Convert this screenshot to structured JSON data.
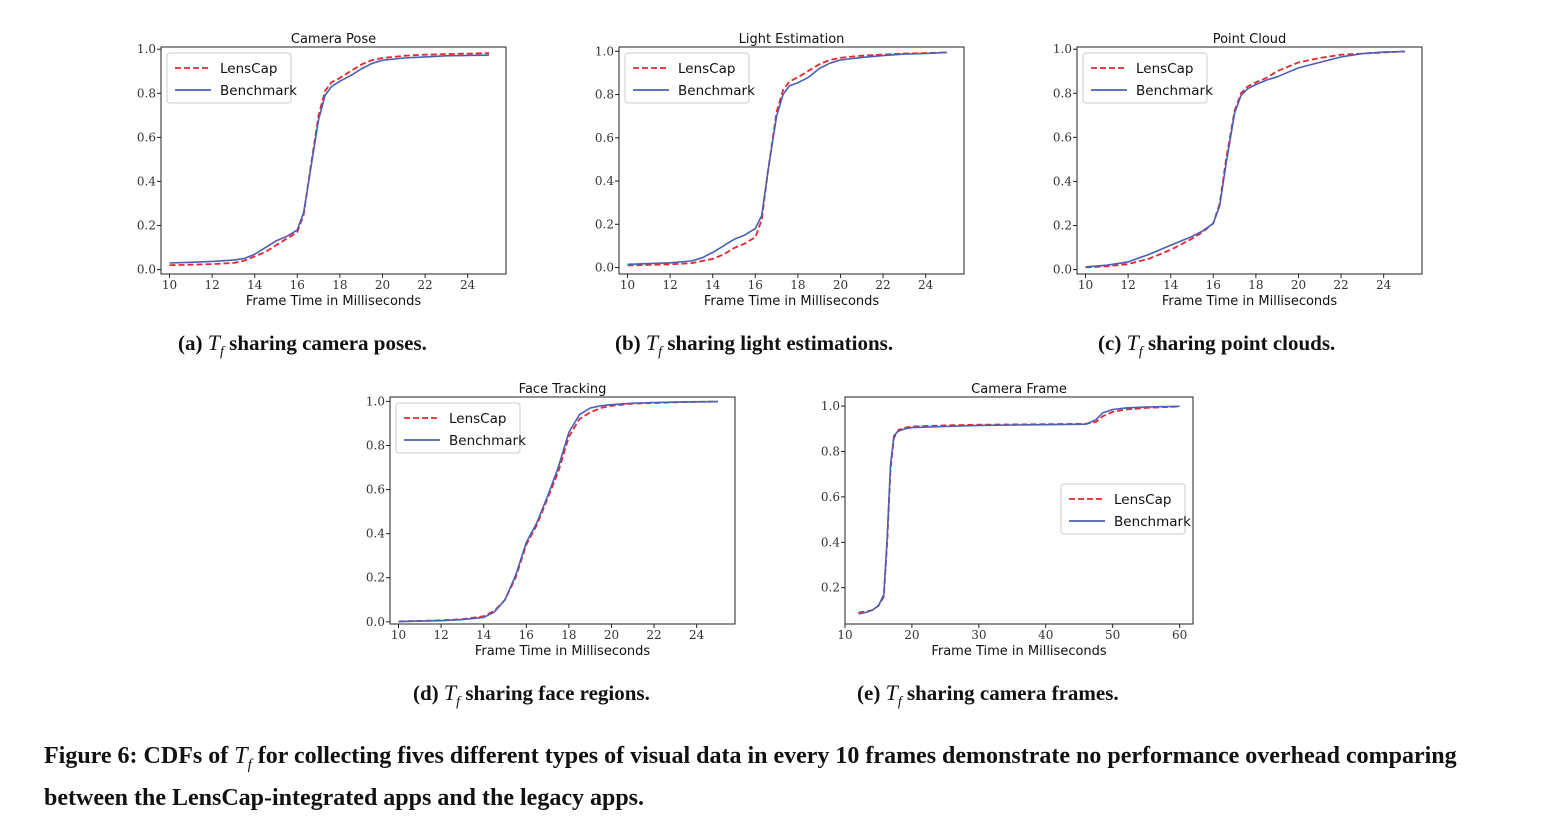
{
  "figure": {
    "caption_label": "Figure 6:",
    "caption_pre": "CDFs of",
    "caption_var": "T",
    "caption_sub": "f",
    "caption_post": "for collecting fives different types of visual data in every 10 frames demonstrate no performance overhead comparing between the LensCap-integrated apps and the legacy apps."
  },
  "subcaptions": [
    {
      "label": "(a)",
      "var": "T",
      "sub": "f",
      "text": "sharing camera poses."
    },
    {
      "label": "(b)",
      "var": "T",
      "sub": "f",
      "text": "sharing light estimations."
    },
    {
      "label": "(c)",
      "var": "T",
      "sub": "f",
      "text": "sharing point clouds."
    },
    {
      "label": "(d)",
      "var": "T",
      "sub": "f",
      "text": "sharing face regions."
    },
    {
      "label": "(e)",
      "var": "T",
      "sub": "f",
      "text": "sharing camera frames."
    }
  ],
  "colors": {
    "lenscap": "#e8262e",
    "benchmark": "#4a5fb5"
  },
  "chart_data": [
    {
      "type": "line",
      "title": "Camera Pose",
      "xlabel": "Frame Time in Milliseconds",
      "ylabel": "",
      "xlim": [
        9.6,
        25.8
      ],
      "ylim": [
        -0.02,
        1.01
      ],
      "xticks": [
        10,
        12,
        14,
        16,
        18,
        20,
        22,
        24
      ],
      "yticks": [
        0.0,
        0.2,
        0.4,
        0.6,
        0.8,
        1.0
      ],
      "legend": "top-left",
      "series": [
        {
          "name": "LensCap",
          "style": "dashed",
          "x": [
            10,
            11,
            12,
            13,
            13.5,
            14,
            14.5,
            15,
            15.5,
            16,
            16.3,
            16.6,
            17,
            17.3,
            17.6,
            18,
            18.5,
            19,
            19.5,
            20,
            21,
            22,
            23,
            24,
            25
          ],
          "y": [
            0.02,
            0.022,
            0.025,
            0.03,
            0.04,
            0.06,
            0.08,
            0.11,
            0.14,
            0.17,
            0.25,
            0.45,
            0.7,
            0.81,
            0.85,
            0.87,
            0.9,
            0.93,
            0.95,
            0.96,
            0.97,
            0.975,
            0.978,
            0.98,
            0.982
          ]
        },
        {
          "name": "Benchmark",
          "style": "solid",
          "x": [
            10,
            11,
            12,
            13,
            13.5,
            14,
            14.5,
            15,
            15.5,
            16,
            16.3,
            16.6,
            17,
            17.3,
            17.6,
            18,
            18.5,
            19,
            19.5,
            20,
            21,
            22,
            23,
            24,
            25
          ],
          "y": [
            0.03,
            0.033,
            0.037,
            0.043,
            0.05,
            0.07,
            0.1,
            0.13,
            0.15,
            0.18,
            0.26,
            0.44,
            0.68,
            0.79,
            0.83,
            0.855,
            0.88,
            0.91,
            0.935,
            0.95,
            0.96,
            0.965,
            0.97,
            0.972,
            0.973
          ]
        }
      ]
    },
    {
      "type": "line",
      "title": "Light Estimation",
      "xlabel": "Frame Time in Milliseconds",
      "ylabel": "",
      "xlim": [
        9.6,
        25.8
      ],
      "ylim": [
        -0.03,
        1.02
      ],
      "xticks": [
        10,
        12,
        14,
        16,
        18,
        20,
        22,
        24
      ],
      "yticks": [
        0.0,
        0.2,
        0.4,
        0.6,
        0.8,
        1.0
      ],
      "legend": "top-left",
      "series": [
        {
          "name": "LensCap",
          "style": "dashed",
          "x": [
            10,
            11,
            12,
            13,
            13.5,
            14,
            14.5,
            15,
            15.5,
            16,
            16.3,
            16.6,
            17,
            17.3,
            17.6,
            18,
            18.5,
            19,
            19.5,
            20,
            21,
            22,
            23,
            24,
            25
          ],
          "y": [
            0.01,
            0.012,
            0.015,
            0.02,
            0.03,
            0.04,
            0.06,
            0.09,
            0.11,
            0.14,
            0.22,
            0.45,
            0.72,
            0.82,
            0.86,
            0.88,
            0.91,
            0.94,
            0.96,
            0.97,
            0.98,
            0.985,
            0.99,
            0.992,
            0.995
          ]
        },
        {
          "name": "Benchmark",
          "style": "solid",
          "x": [
            10,
            11,
            12,
            13,
            13.5,
            14,
            14.5,
            15,
            15.5,
            16,
            16.3,
            16.6,
            17,
            17.3,
            17.6,
            18,
            18.5,
            19,
            19.5,
            20,
            21,
            22,
            23,
            24,
            25
          ],
          "y": [
            0.015,
            0.018,
            0.022,
            0.03,
            0.045,
            0.07,
            0.1,
            0.13,
            0.15,
            0.18,
            0.24,
            0.45,
            0.7,
            0.8,
            0.84,
            0.855,
            0.88,
            0.92,
            0.945,
            0.96,
            0.972,
            0.98,
            0.987,
            0.99,
            0.995
          ]
        }
      ]
    },
    {
      "type": "line",
      "title": "Point Cloud",
      "xlabel": "Frame Time in Milliseconds",
      "ylabel": "",
      "xlim": [
        9.6,
        25.8
      ],
      "ylim": [
        -0.02,
        1.01
      ],
      "xticks": [
        10,
        12,
        14,
        16,
        18,
        20,
        22,
        24
      ],
      "yticks": [
        0.0,
        0.2,
        0.4,
        0.6,
        0.8,
        1.0
      ],
      "legend": "top-left",
      "series": [
        {
          "name": "LensCap",
          "style": "dashed",
          "x": [
            10,
            11,
            12,
            13,
            14,
            15,
            15.5,
            16,
            16.3,
            16.6,
            17,
            17.3,
            17.6,
            18,
            18.5,
            19,
            19.5,
            20,
            21,
            22,
            23,
            24,
            25
          ],
          "y": [
            0.01,
            0.015,
            0.025,
            0.05,
            0.09,
            0.14,
            0.17,
            0.21,
            0.3,
            0.5,
            0.72,
            0.8,
            0.83,
            0.85,
            0.87,
            0.9,
            0.92,
            0.94,
            0.96,
            0.975,
            0.98,
            0.985,
            0.99
          ]
        },
        {
          "name": "Benchmark",
          "style": "solid",
          "x": [
            10,
            11,
            12,
            13,
            14,
            15,
            15.5,
            16,
            16.3,
            16.6,
            17,
            17.3,
            17.6,
            18,
            18.5,
            19,
            19.5,
            20,
            21,
            22,
            23,
            24,
            25
          ],
          "y": [
            0.012,
            0.02,
            0.035,
            0.07,
            0.11,
            0.15,
            0.175,
            0.21,
            0.29,
            0.48,
            0.71,
            0.79,
            0.82,
            0.84,
            0.86,
            0.875,
            0.895,
            0.915,
            0.94,
            0.965,
            0.98,
            0.987,
            0.99
          ]
        }
      ]
    },
    {
      "type": "line",
      "title": "Face Tracking",
      "xlabel": "Frame Time in Milliseconds",
      "ylabel": "",
      "xlim": [
        9.6,
        25.8
      ],
      "ylim": [
        -0.01,
        1.02
      ],
      "xticks": [
        10,
        12,
        14,
        16,
        18,
        20,
        22,
        24
      ],
      "yticks": [
        0.0,
        0.2,
        0.4,
        0.6,
        0.8,
        1.0
      ],
      "legend": "top-left",
      "series": [
        {
          "name": "LensCap",
          "style": "dashed",
          "x": [
            10,
            11,
            12,
            13,
            14,
            14.5,
            15,
            15.5,
            16,
            16.5,
            17,
            17.5,
            18,
            18.5,
            19,
            19.5,
            20,
            21,
            22,
            23,
            24,
            25
          ],
          "y": [
            0.002,
            0.004,
            0.007,
            0.012,
            0.025,
            0.05,
            0.1,
            0.2,
            0.35,
            0.44,
            0.56,
            0.68,
            0.84,
            0.92,
            0.95,
            0.97,
            0.98,
            0.99,
            0.993,
            0.996,
            0.998,
            0.999
          ]
        },
        {
          "name": "Benchmark",
          "style": "solid",
          "x": [
            10,
            11,
            12,
            13,
            14,
            14.5,
            15,
            15.5,
            16,
            16.5,
            17,
            17.5,
            18,
            18.5,
            19,
            19.5,
            20,
            21,
            22,
            23,
            24,
            25
          ],
          "y": [
            0.001,
            0.003,
            0.005,
            0.01,
            0.02,
            0.045,
            0.1,
            0.21,
            0.36,
            0.45,
            0.57,
            0.7,
            0.86,
            0.94,
            0.97,
            0.98,
            0.985,
            0.992,
            0.995,
            0.997,
            0.998,
            0.999
          ]
        }
      ]
    },
    {
      "type": "line",
      "title": "Camera Frame",
      "xlabel": "Frame Time in Milliseconds",
      "ylabel": "",
      "xlim": [
        10,
        62
      ],
      "ylim": [
        0.04,
        1.04
      ],
      "xticks": [
        10,
        20,
        30,
        40,
        50,
        60
      ],
      "yticks": [
        0.2,
        0.4,
        0.6,
        0.8,
        1.0
      ],
      "legend": "center-right",
      "series": [
        {
          "name": "LensCap",
          "style": "dashed",
          "x": [
            12,
            13,
            14,
            15,
            15.8,
            16.3,
            16.8,
            17.3,
            18,
            19,
            20,
            25,
            30,
            40,
            46,
            47.5,
            48.5,
            50,
            52,
            55,
            60
          ],
          "y": [
            0.09,
            0.095,
            0.1,
            0.12,
            0.16,
            0.4,
            0.72,
            0.86,
            0.895,
            0.905,
            0.91,
            0.915,
            0.918,
            0.92,
            0.922,
            0.93,
            0.955,
            0.975,
            0.985,
            0.992,
            0.998
          ]
        },
        {
          "name": "Benchmark",
          "style": "solid",
          "x": [
            12,
            13,
            14,
            15,
            15.8,
            16.3,
            16.8,
            17.3,
            18,
            19,
            20,
            25,
            30,
            40,
            46,
            47.5,
            48.5,
            50,
            52,
            55,
            60
          ],
          "y": [
            0.085,
            0.09,
            0.1,
            0.12,
            0.17,
            0.42,
            0.74,
            0.87,
            0.89,
            0.9,
            0.905,
            0.91,
            0.915,
            0.918,
            0.92,
            0.94,
            0.97,
            0.985,
            0.992,
            0.996,
            0.999
          ]
        }
      ]
    }
  ]
}
